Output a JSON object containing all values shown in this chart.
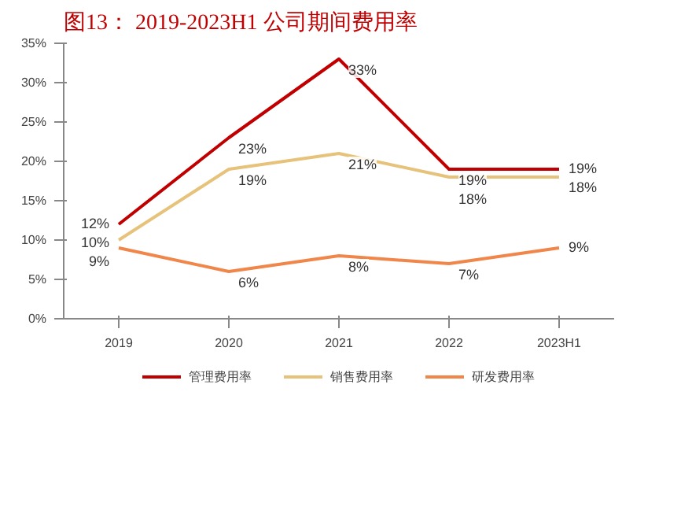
{
  "chart_data": {
    "type": "line",
    "title": "图13：  2019-2023H1 公司期间费用率",
    "categories": [
      "2019",
      "2020",
      "2021",
      "2022",
      "2023H1"
    ],
    "series": [
      {
        "name": "管理费用率",
        "color": "#c00000",
        "values": [
          12,
          23,
          33,
          19,
          19
        ],
        "value_labels": [
          "12%",
          "23%",
          "33%",
          "19%",
          "19%"
        ]
      },
      {
        "name": "销售费用率",
        "color": "#e6c27a",
        "values": [
          10,
          19,
          21,
          18,
          18
        ],
        "value_labels": [
          "10%",
          "19%",
          "21%",
          "18%",
          "18%"
        ]
      },
      {
        "name": "研发费用率",
        "color": "#f0864a",
        "values": [
          9,
          6,
          8,
          7,
          9
        ],
        "value_labels": [
          "9%",
          "6%",
          "8%",
          "7%",
          "9%"
        ]
      }
    ],
    "ylim": [
      0,
      35
    ],
    "yticks": [
      {
        "value": 0,
        "label": "0%"
      },
      {
        "value": 5,
        "label": "5%"
      },
      {
        "value": 10,
        "label": "10%"
      },
      {
        "value": 15,
        "label": "15%"
      },
      {
        "value": 20,
        "label": "20%"
      },
      {
        "value": 25,
        "label": "25%"
      },
      {
        "value": 30,
        "label": "30%"
      },
      {
        "value": 35,
        "label": "35%"
      }
    ],
    "grid": false,
    "legend": "bottom",
    "marker": "none",
    "line_style": "solid"
  }
}
